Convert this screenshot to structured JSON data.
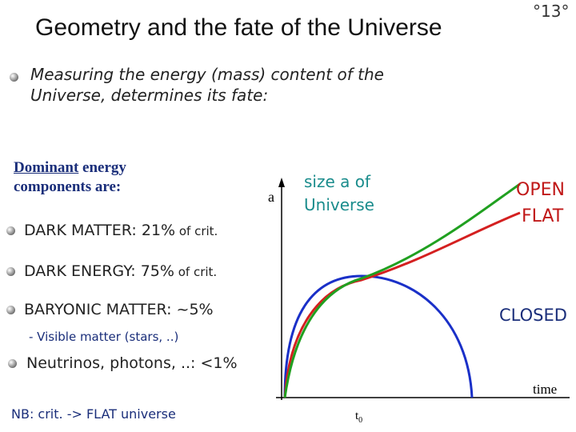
{
  "header": {
    "title": "Geometry and the fate of the Universe",
    "slide_number": "°13°"
  },
  "intro": "Measuring the energy (mass) content of the Universe, determines its fate:",
  "components": {
    "heading_underlined": "Dominant",
    "heading_rest": " energy components are:",
    "items": [
      {
        "main": "DARK MATTER: 21%",
        "small": " of crit."
      },
      {
        "main": "DARK ENERGY: 75%",
        "small": " of crit."
      },
      {
        "main": "BARYONIC MATTER: ~5%"
      }
    ],
    "sub_item": "- Visible matter (stars, ..)",
    "last_item": "Neutrinos, photons, ..: <1%"
  },
  "note": "NB: crit. -> FLAT universe",
  "diagram": {
    "y_axis_label": "a",
    "caption_line1": "size a of",
    "caption_line2": "Universe",
    "open_label": "OPEN",
    "flat_label": "FLAT",
    "closed_label": "CLOSED",
    "x_axis_label": "time",
    "t0_main": "t",
    "t0_sub": "0"
  }
}
